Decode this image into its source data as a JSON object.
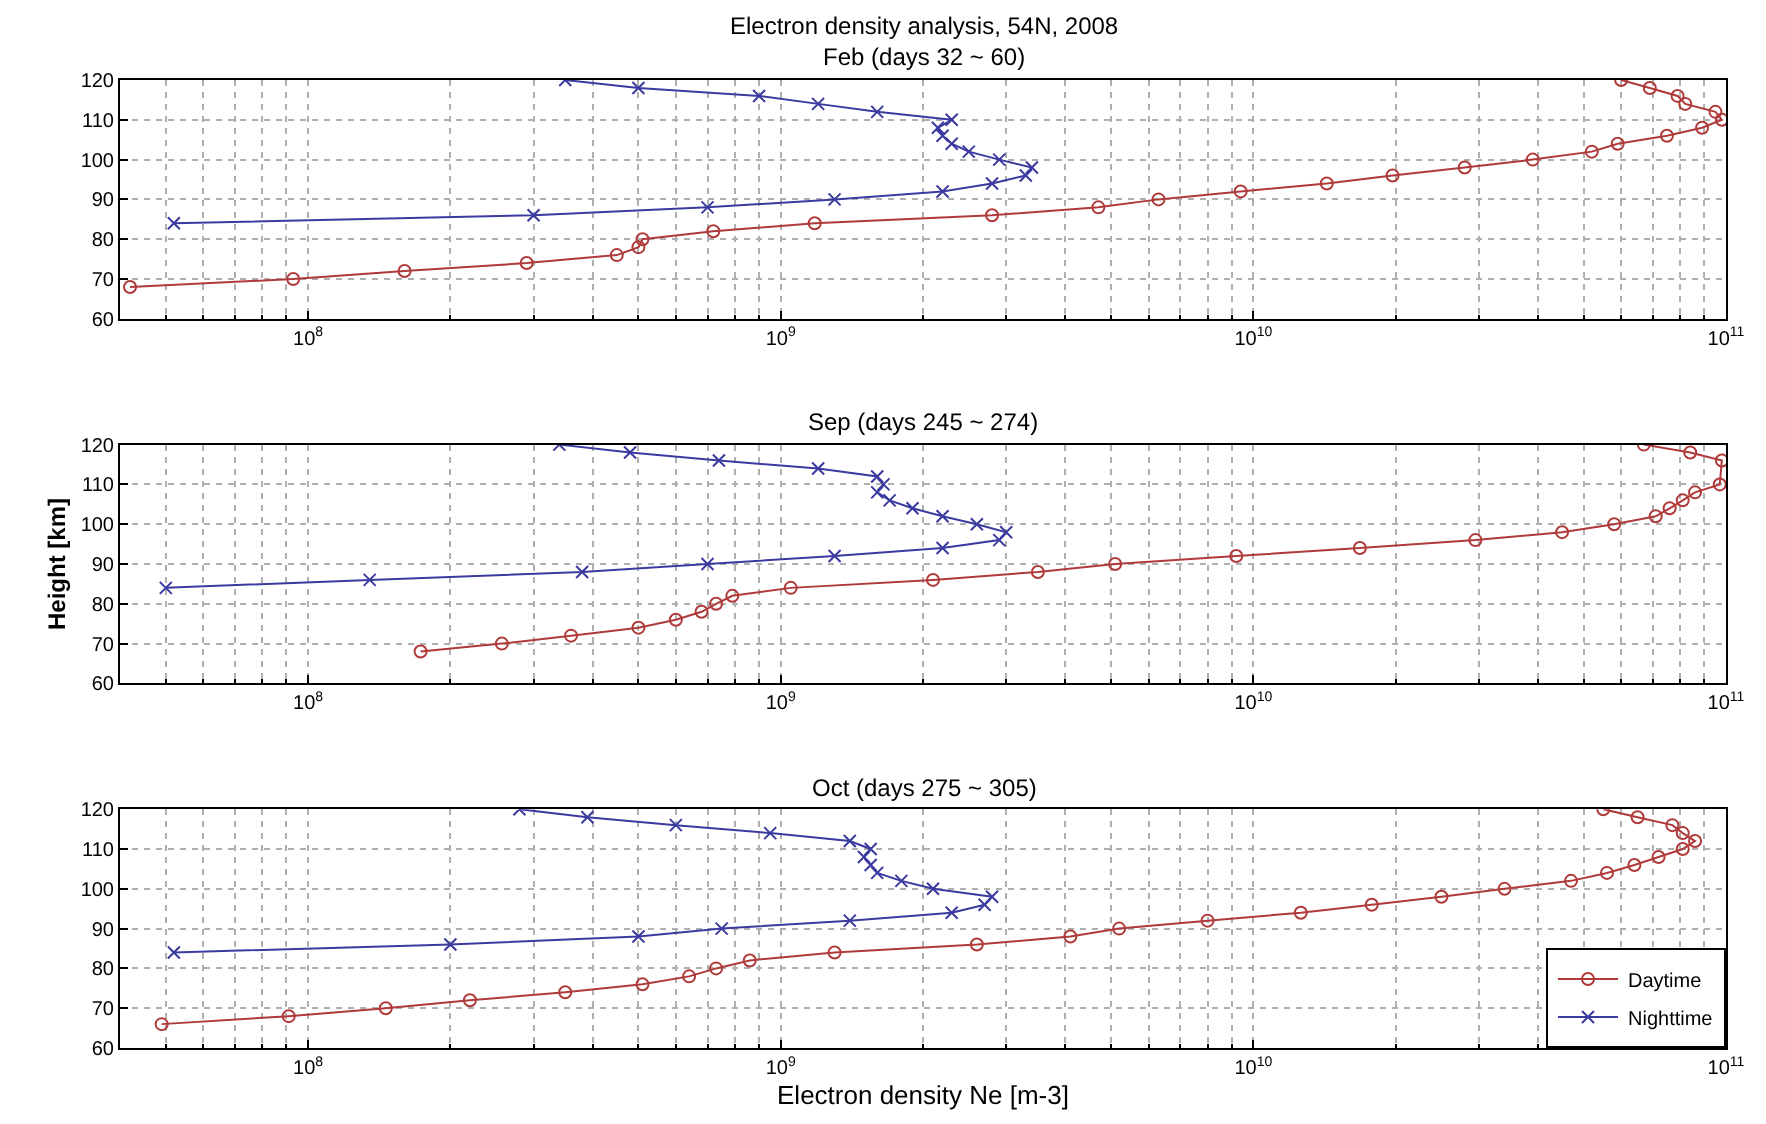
{
  "chart_data": [
    {
      "type": "line",
      "title": "Electron density analysis, 54N, 2008",
      "subtitle": "Feb (days 32 ~ 60)",
      "log": "x",
      "grid": true,
      "legend": false,
      "tick_labels": "xy",
      "xlim": [
        40000000.0,
        100000000000.0
      ],
      "xticks": [
        {
          "value": 100000000.0,
          "label": "10$^{8}$"
        },
        {
          "value": 1000000000.0,
          "label": "10$^{9}$"
        },
        {
          "value": 10000000000.0,
          "label": "10$^{10}$"
        },
        {
          "value": 100000000000.0,
          "label": "10$^{11}$"
        }
      ],
      "ylim": [
        60,
        120
      ],
      "yticks": [
        60,
        70,
        80,
        90,
        100,
        110,
        120
      ],
      "series": [
        {
          "color": "#b03a3a",
          "marker": "circle",
          "x": [
            42000000.0,
            93000000.0,
            160000000.0,
            290000000.0,
            450000000.0,
            500000000.0,
            510000000.0,
            720000000.0,
            1180000000.0,
            2800000000.0,
            4700000000.0,
            6300000000.0,
            9400000000.0,
            14300000000.0,
            19700000000.0,
            28000000000.0,
            39000000000.0,
            52000000000.0,
            59000000000.0,
            75000000000.0,
            89000000000.0,
            98000000000.0,
            95000000000.0,
            82000000000.0,
            79000000000.0,
            69000000000.0,
            60000000000.0
          ],
          "values": [
            68,
            70,
            72,
            74,
            76,
            78,
            80,
            82,
            84,
            86,
            88,
            90,
            92,
            94,
            96,
            98,
            100,
            102,
            104,
            106,
            108,
            110,
            112,
            114,
            116,
            118,
            120
          ]
        },
        {
          "color": "#3a3aa0",
          "marker": "cross",
          "x": [
            52000000.0,
            300000000.0,
            700000000.0,
            1300000000.0,
            2200000000.0,
            2800000000.0,
            3300000000.0,
            3400000000.0,
            2900000000.0,
            2500000000.0,
            2300000000.0,
            2200000000.0,
            2150000000.0,
            2300000000.0,
            1600000000.0,
            1200000000.0,
            900000000.0,
            500000000.0,
            350000000.0
          ],
          "values": [
            84,
            86,
            88,
            90,
            92,
            94,
            96,
            98,
            100,
            102,
            104,
            106,
            108,
            110,
            112,
            114,
            116,
            118,
            120
          ]
        }
      ]
    },
    {
      "type": "line",
      "title": "Sep (days 245 ~ 274)",
      "ylabel": "Height [km]",
      "log": "x",
      "grid": true,
      "legend": false,
      "tick_labels": "xy",
      "xlim": [
        40000000.0,
        100000000000.0
      ],
      "xticks": [
        {
          "value": 100000000.0,
          "label": "10$^{8}$"
        },
        {
          "value": 1000000000.0,
          "label": "10$^{9}$"
        },
        {
          "value": 10000000000.0,
          "label": "10$^{10}$"
        },
        {
          "value": 100000000000.0,
          "label": "10$^{11}$"
        }
      ],
      "ylim": [
        60,
        120
      ],
      "yticks": [
        60,
        70,
        80,
        90,
        100,
        110,
        120
      ],
      "series": [
        {
          "color": "#b03a3a",
          "marker": "circle",
          "x": [
            173000000.0,
            257000000.0,
            360000000.0,
            500000000.0,
            600000000.0,
            680000000.0,
            730000000.0,
            790000000.0,
            1050000000.0,
            2100000000.0,
            3500000000.0,
            5100000000.0,
            9200000000.0,
            16800000000.0,
            29500000000.0,
            45000000000.0,
            58000000000.0,
            71000000000.0,
            76000000000.0,
            81000000000.0,
            86000000000.0,
            97000000000.0,
            98000000000.0,
            84000000000.0,
            67000000000.0
          ],
          "values": [
            68,
            70,
            72,
            74,
            76,
            78,
            80,
            82,
            84,
            86,
            88,
            90,
            92,
            94,
            96,
            98,
            100,
            102,
            104,
            106,
            108,
            110,
            116,
            118,
            120
          ]
        },
        {
          "color": "#3a3aa0",
          "marker": "cross",
          "x": [
            50000000.0,
            135000000.0,
            380000000.0,
            700000000.0,
            1300000000.0,
            2200000000.0,
            2900000000.0,
            3000000000.0,
            2600000000.0,
            2200000000.0,
            1900000000.0,
            1700000000.0,
            1600000000.0,
            1650000000.0,
            1600000000.0,
            1200000000.0,
            740000000.0,
            480000000.0,
            340000000.0
          ],
          "values": [
            84,
            86,
            88,
            90,
            92,
            94,
            96,
            98,
            100,
            102,
            104,
            106,
            108,
            110,
            112,
            114,
            116,
            118,
            120
          ]
        }
      ]
    },
    {
      "type": "line",
      "title": "Oct (days 275 ~ 305)",
      "xlabel": "Electron density Ne [m-3]",
      "log": "x",
      "grid": true,
      "legend": "bottom right",
      "xlim": [
        40000000.0,
        100000000000.0
      ],
      "xticks": [
        {
          "value": 100000000.0,
          "label": "10$^{8}$"
        },
        {
          "value": 1000000000.0,
          "label": "10$^{9}$"
        },
        {
          "value": 10000000000.0,
          "label": "10$^{10}$"
        },
        {
          "value": 100000000000.0,
          "label": "10$^{11}$"
        }
      ],
      "ylim": [
        60,
        120
      ],
      "yticks": [
        60,
        70,
        80,
        90,
        100,
        110,
        120
      ],
      "series": [
        {
          "name": "Daytime",
          "color": "#b03a3a",
          "marker": "circle",
          "x": [
            49000000.0,
            91000000.0,
            146000000.0,
            220000000.0,
            350000000.0,
            510000000.0,
            640000000.0,
            730000000.0,
            860000000.0,
            1300000000.0,
            2600000000.0,
            4100000000.0,
            5200000000.0,
            8000000000.0,
            12600000000.0,
            17800000000.0,
            25000000000.0,
            34000000000.0,
            47000000000.0,
            56000000000.0,
            64000000000.0,
            72000000000.0,
            81000000000.0,
            86000000000.0,
            81000000000.0,
            77000000000.0,
            65000000000.0,
            55000000000.0
          ],
          "values": [
            66,
            68,
            70,
            72,
            74,
            76,
            78,
            80,
            82,
            84,
            86,
            88,
            90,
            92,
            94,
            96,
            98,
            100,
            102,
            104,
            106,
            108,
            110,
            112,
            114,
            116,
            118,
            120
          ]
        },
        {
          "name": "Nighttime",
          "color": "#3a3aa0",
          "marker": "cross",
          "x": [
            52000000.0,
            200000000.0,
            500000000.0,
            750000000.0,
            1400000000.0,
            2300000000.0,
            2700000000.0,
            2800000000.0,
            2100000000.0,
            1800000000.0,
            1600000000.0,
            1550000000.0,
            1500000000.0,
            1550000000.0,
            1400000000.0,
            950000000.0,
            600000000.0,
            390000000.0,
            280000000.0
          ],
          "values": [
            84,
            86,
            88,
            90,
            92,
            94,
            96,
            98,
            100,
            102,
            104,
            106,
            108,
            110,
            112,
            114,
            116,
            118,
            120
          ]
        }
      ]
    }
  ]
}
